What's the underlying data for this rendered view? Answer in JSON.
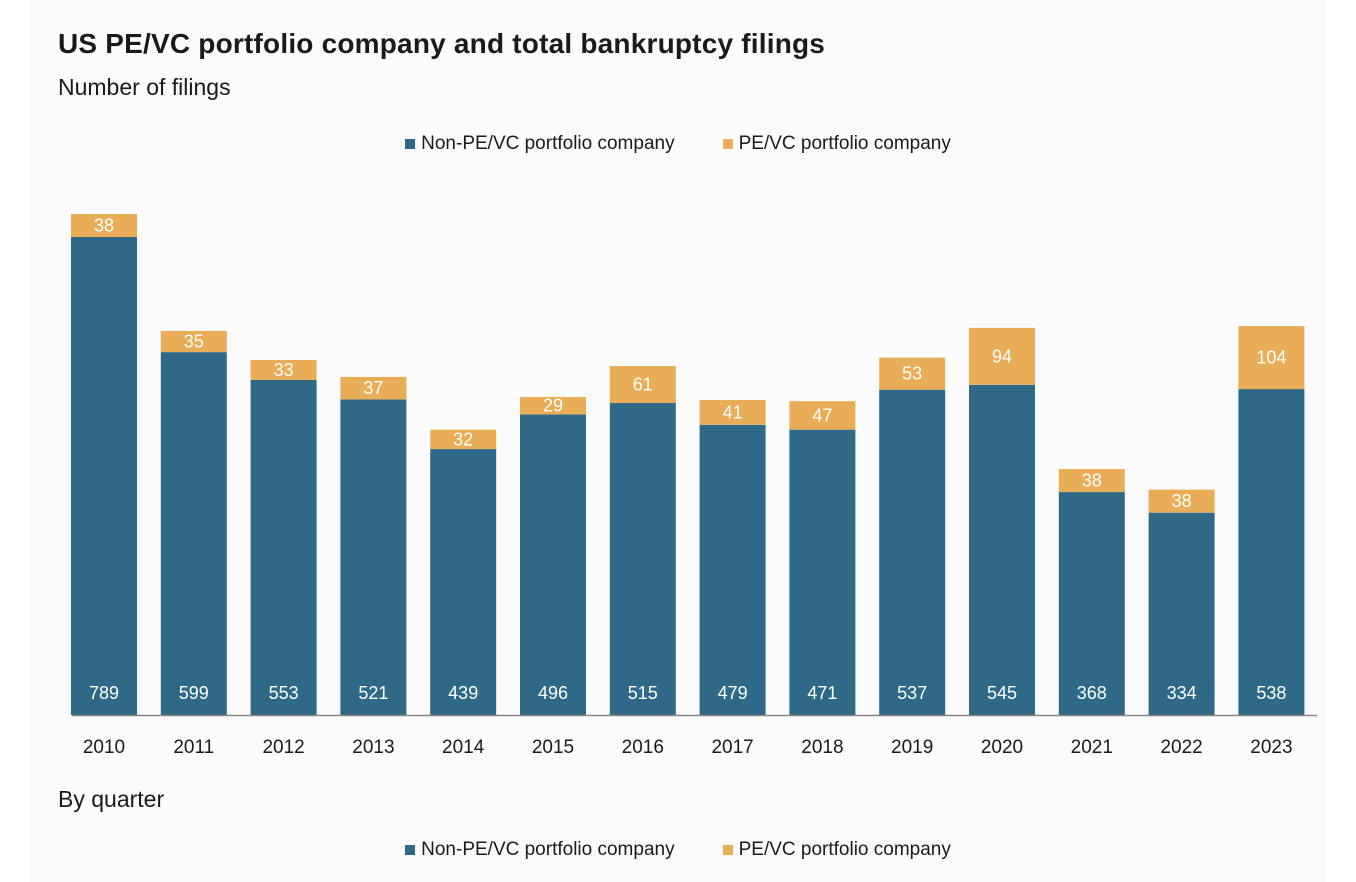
{
  "title": "US PE/VC portfolio company and total bankruptcy filings",
  "subtitle": "Number of filings",
  "section_label": "By quarter",
  "colors": {
    "non_pe": "#2e6a87",
    "pe": "#e9ad57",
    "axis": "#888888"
  },
  "legend": {
    "non_pe_label": "Non-PE/VC portfolio company",
    "pe_label": "PE/VC portfolio company"
  },
  "chart_data": {
    "type": "bar",
    "stacked": true,
    "title": "US PE/VC portfolio company and total bankruptcy filings",
    "ylabel": "Number of filings",
    "xlabel": "",
    "categories": [
      "2010",
      "2011",
      "2012",
      "2013",
      "2014",
      "2015",
      "2016",
      "2017",
      "2018",
      "2019",
      "2020",
      "2021",
      "2022",
      "2023"
    ],
    "series": [
      {
        "name": "Non-PE/VC portfolio company",
        "values": [
          789,
          599,
          553,
          521,
          439,
          496,
          515,
          479,
          471,
          537,
          545,
          368,
          334,
          538
        ]
      },
      {
        "name": "PE/VC portfolio company",
        "values": [
          38,
          35,
          33,
          37,
          32,
          29,
          61,
          41,
          47,
          53,
          94,
          38,
          38,
          104
        ]
      }
    ],
    "ylim": [
      0,
      827
    ],
    "grid": false,
    "legend_position": "top-center"
  }
}
